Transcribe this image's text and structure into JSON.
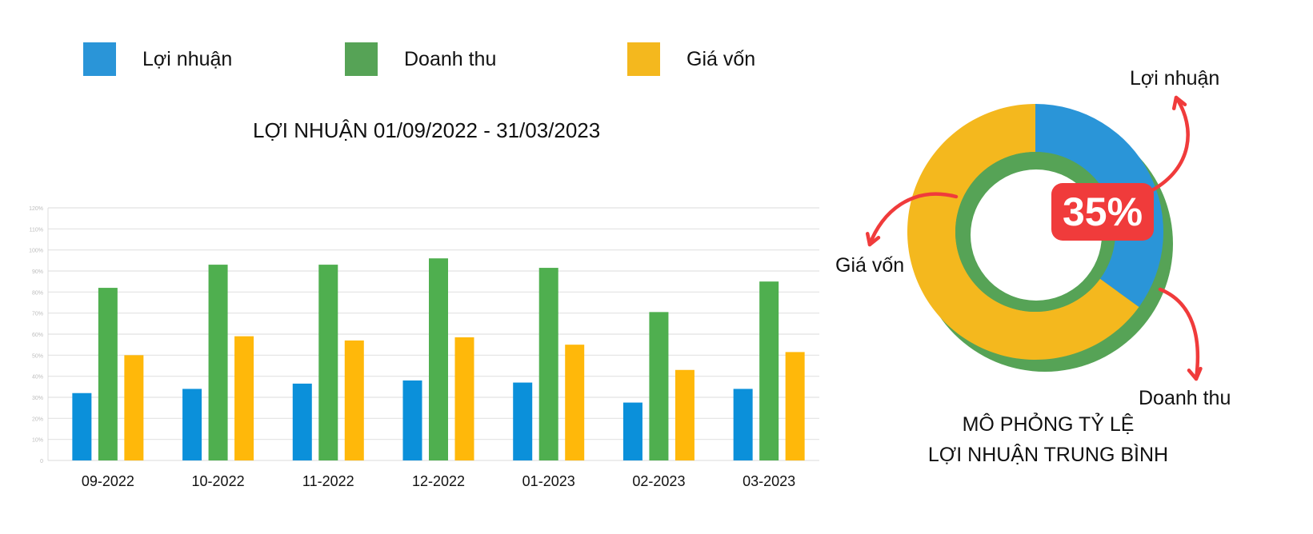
{
  "legend": [
    {
      "label": "Lợi nhuận",
      "color": "#2a95d8"
    },
    {
      "label": "Doanh thu",
      "color": "#56a356"
    },
    {
      "label": "Giá vốn",
      "color": "#f4b81e"
    }
  ],
  "chart_data": [
    {
      "type": "bar",
      "title": "LỢI NHUẬN 01/09/2022 - 31/03/2023",
      "categories": [
        "09-2022",
        "10-2022",
        "11-2022",
        "12-2022",
        "01-2023",
        "02-2023",
        "03-2023"
      ],
      "series": [
        {
          "name": "Lợi nhuận",
          "color": "#0b90da",
          "values": [
            32,
            34,
            36.5,
            38,
            37,
            27.5,
            34
          ]
        },
        {
          "name": "Doanh thu",
          "color": "#4faf4f",
          "values": [
            82,
            93,
            93,
            96,
            91.5,
            70.5,
            85
          ]
        },
        {
          "name": "Giá vốn",
          "color": "#ffb80a",
          "values": [
            50,
            59,
            57,
            58.5,
            55,
            43,
            51.5
          ]
        }
      ],
      "ylim": [
        0,
        120
      ],
      "yticks": [
        "0",
        "10%",
        "20%",
        "30%",
        "40%",
        "50%",
        "60%",
        "70%",
        "80%",
        "90%",
        "100%",
        "110%",
        "120%"
      ],
      "grid": true,
      "legend_position": "top"
    },
    {
      "type": "pie",
      "caption_line1": "MÔ PHỎNG TỶ LỆ",
      "caption_line2": "LỢI NHUẬN TRUNG BÌNH",
      "highlight_label": "35%",
      "slices": [
        {
          "name": "Lợi nhuận",
          "value": 35,
          "color": "#2a95d8"
        },
        {
          "name": "Giá vốn",
          "value": 65,
          "color": "#f4b81e"
        }
      ],
      "inner_ring": {
        "name": "Doanh thu",
        "value": 100,
        "color": "#56a356"
      }
    }
  ],
  "annotation_color": "#f03b3b"
}
